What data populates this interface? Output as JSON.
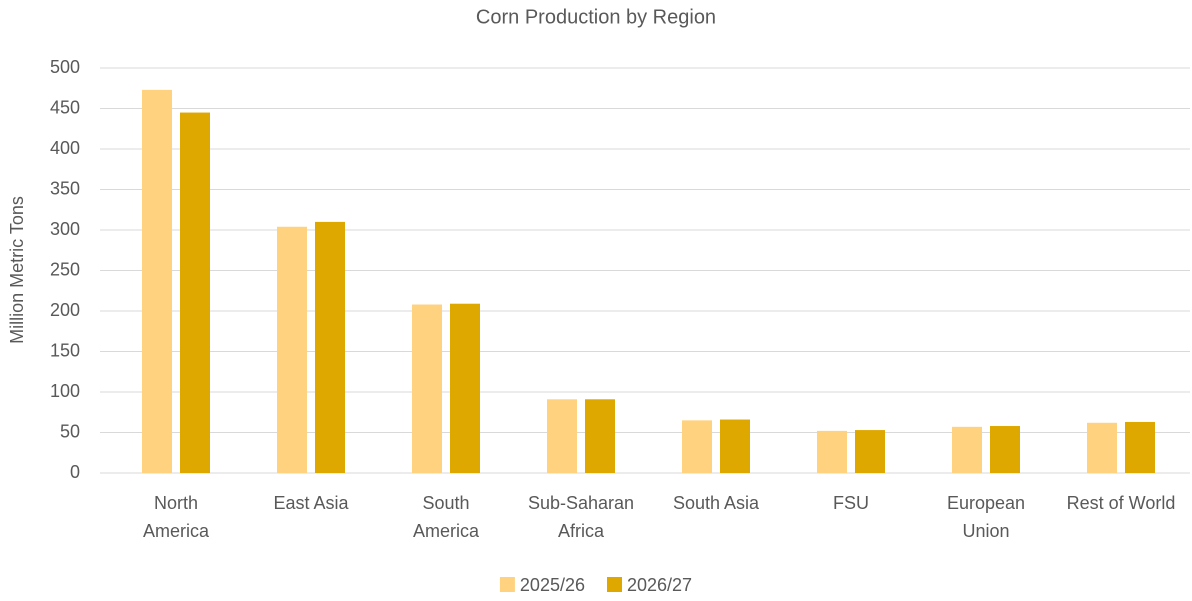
{
  "chart_data": {
    "type": "bar",
    "title": "Corn Production by Region",
    "y_label": "Million Metric Tons",
    "categories": [
      "North America",
      "East Asia",
      "South America",
      "Sub-Saharan Africa",
      "South Asia",
      "FSU",
      "European Union",
      "Rest of World"
    ],
    "series": [
      {
        "name": "2025/26",
        "color": "#ffd280",
        "values": [
          473,
          304,
          208,
          91,
          65,
          52,
          57,
          62
        ]
      },
      {
        "name": "2026/27",
        "color": "#dfa800",
        "values": [
          445,
          310,
          209,
          91,
          66,
          53,
          58,
          63
        ]
      }
    ],
    "ylim": [
      0,
      500
    ],
    "yticks": [
      0,
      50,
      100,
      150,
      200,
      250,
      300,
      350,
      400,
      450,
      500
    ],
    "grid": true,
    "legend": "bottom"
  }
}
